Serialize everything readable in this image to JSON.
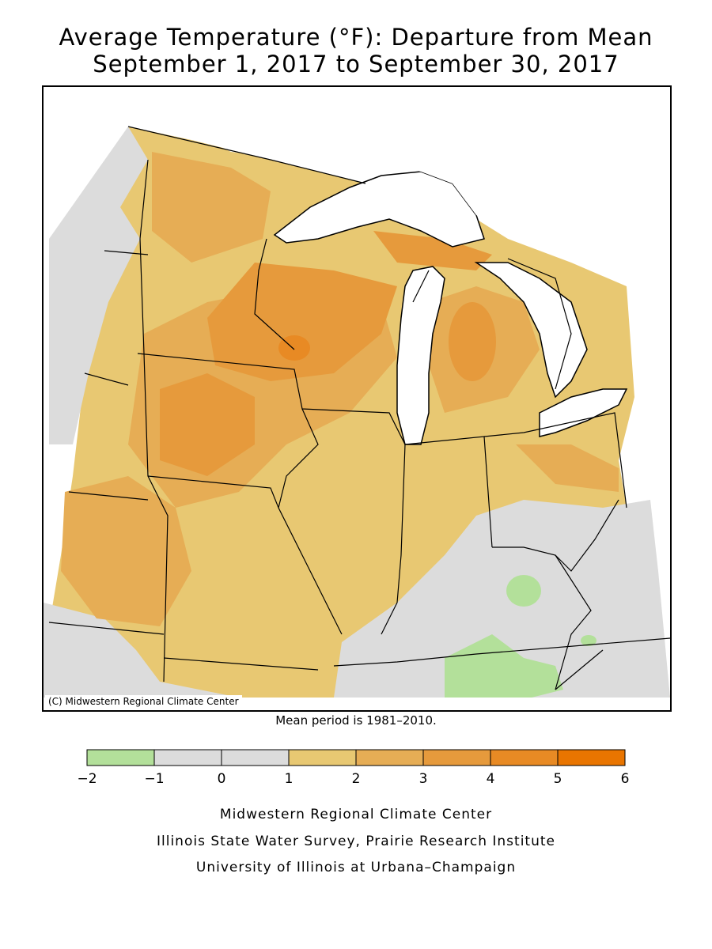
{
  "title": {
    "line1": "Average Temperature (°F): Departure from Mean",
    "line2": "September 1, 2017 to September 30, 2017"
  },
  "map": {
    "copyright": "(C) Midwestern Regional Climate Center",
    "mean_period": "Mean period is 1981–2010.",
    "region": "Midwest United States",
    "lake_color": "#ffffff"
  },
  "legend": {
    "bins": [
      {
        "from": -2,
        "to": -1,
        "color": "#b3e09a"
      },
      {
        "from": -1,
        "to": 0,
        "color": "#dcdcdc"
      },
      {
        "from": 0,
        "to": 1,
        "color": "#dcdcdc"
      },
      {
        "from": 1,
        "to": 2,
        "color": "#e8c872"
      },
      {
        "from": 2,
        "to": 3,
        "color": "#e6ad55"
      },
      {
        "from": 3,
        "to": 4,
        "color": "#e69a3c"
      },
      {
        "from": 4,
        "to": 5,
        "color": "#e88a24"
      },
      {
        "from": 5,
        "to": 6,
        "color": "#e97500"
      }
    ],
    "tick_labels": [
      "−2",
      "−1",
      "0",
      "1",
      "2",
      "3",
      "4",
      "5",
      "6"
    ]
  },
  "credits": {
    "line1": "Midwestern Regional Climate Center",
    "line2": "Illinois State Water Survey, Prairie Research Institute",
    "line3": "University of Illinois at Urbana–Champaign"
  }
}
